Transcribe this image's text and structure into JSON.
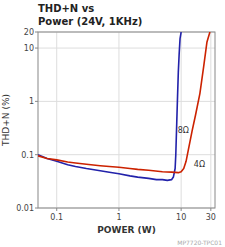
{
  "chart_data": {
    "type": "line",
    "title": "THD+N vs",
    "subtitle": "Power (24V, 1KHz)",
    "xlabel": "POWER (W)",
    "ylabel": "THD+N (%)",
    "log": true,
    "grid": true,
    "xlim": [
      0.05,
      35
    ],
    "ylim": [
      0.01,
      20
    ],
    "xticks": [
      0.1,
      1,
      10,
      30
    ],
    "yticks": [
      0.01,
      0.1,
      1,
      10,
      20
    ],
    "series": [
      {
        "color": "#2222aa",
        "x": [
          0.05,
          0.07,
          0.1,
          0.15,
          0.2,
          0.3,
          0.5,
          0.7,
          1.0,
          1.5,
          2.0,
          3.0,
          4.0,
          5.0,
          6.0,
          7.0,
          7.5,
          8.0,
          8.2,
          8.5,
          8.7,
          9.0,
          9.3,
          9.6,
          10.0
        ],
        "values": [
          0.1,
          0.085,
          0.075,
          0.065,
          0.06,
          0.055,
          0.05,
          0.047,
          0.044,
          0.04,
          0.038,
          0.036,
          0.034,
          0.034,
          0.033,
          0.034,
          0.038,
          0.055,
          0.1,
          0.4,
          1.0,
          3.5,
          8.0,
          15.0,
          20.0
        ]
      },
      {
        "color": "#cc2200",
        "x": [
          0.05,
          0.07,
          0.1,
          0.15,
          0.2,
          0.3,
          0.5,
          0.7,
          1.0,
          1.5,
          2.0,
          3.0,
          5.0,
          7.0,
          9.0,
          10.0,
          11.0,
          12.0,
          13.0,
          15.0,
          17.0,
          20.0,
          23.0,
          26.0,
          29.0
        ],
        "values": [
          0.095,
          0.085,
          0.08,
          0.073,
          0.07,
          0.066,
          0.062,
          0.06,
          0.058,
          0.055,
          0.053,
          0.051,
          0.048,
          0.047,
          0.046,
          0.048,
          0.055,
          0.075,
          0.12,
          0.28,
          0.55,
          1.4,
          4.5,
          13.0,
          20.0
        ]
      }
    ],
    "annotations": [
      {
        "text": "8Ω",
        "x": 8.8,
        "y": 0.25
      },
      {
        "text": "4Ω",
        "x": 16.0,
        "y": 0.058
      },
      {
        "text": "MP7720-TPC01"
      }
    ]
  }
}
